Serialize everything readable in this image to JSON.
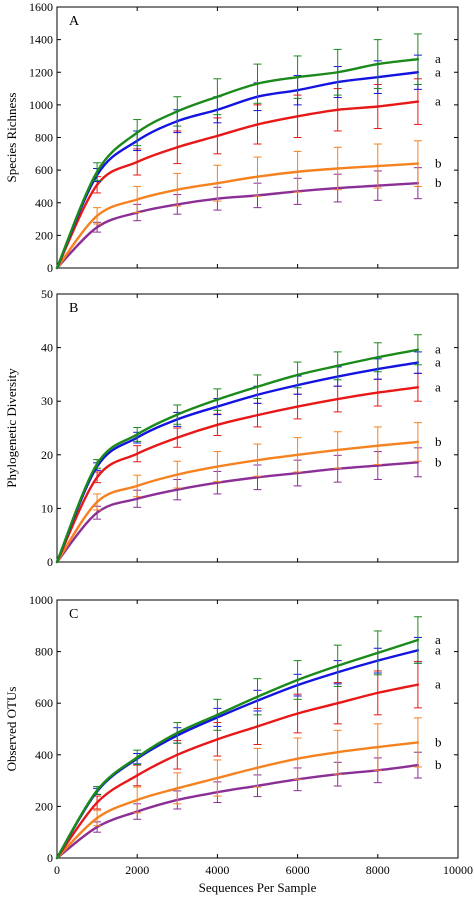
{
  "chart_data": {
    "type": "line",
    "xlabel": "Sequences Per Sample",
    "xlim": [
      0,
      10000
    ],
    "xticks": [
      0,
      2000,
      4000,
      6000,
      8000,
      10000
    ],
    "x": [
      0,
      1000,
      2000,
      3000,
      4000,
      5000,
      6000,
      7000,
      8000,
      9000
    ],
    "colors": {
      "green": "#1a8a1a",
      "blue": "#1414e0",
      "red": "#e81818",
      "orange": "#f58220",
      "purple": "#8b2f96"
    },
    "panels": [
      {
        "letter": "A",
        "ylabel": "Species Richness",
        "ylim": [
          0,
          1600
        ],
        "yticks": [
          0,
          200,
          400,
          600,
          800,
          1000,
          1200,
          1400,
          1600
        ],
        "series": [
          {
            "color": "green",
            "letter": "a",
            "values": [
              0,
              590,
              830,
              960,
              1050,
              1130,
              1170,
              1200,
              1250,
              1280
            ],
            "errors": [
              0,
              55,
              80,
              90,
              110,
              120,
              130,
              140,
              150,
              155
            ]
          },
          {
            "color": "blue",
            "letter": "a",
            "values": [
              0,
              570,
              780,
              900,
              970,
              1050,
              1090,
              1140,
              1170,
              1200
            ],
            "errors": [
              0,
              40,
              60,
              70,
              80,
              85,
              90,
              95,
              100,
              105
            ]
          },
          {
            "color": "red",
            "letter": "a",
            "values": [
              0,
              510,
              650,
              740,
              810,
              880,
              930,
              970,
              990,
              1020
            ],
            "errors": [
              0,
              50,
              80,
              100,
              110,
              120,
              130,
              130,
              135,
              140
            ]
          },
          {
            "color": "orange",
            "letter": "b",
            "values": [
              0,
              320,
              420,
              480,
              520,
              560,
              590,
              610,
              625,
              640
            ],
            "errors": [
              0,
              50,
              80,
              100,
              110,
              120,
              125,
              130,
              135,
              140
            ]
          },
          {
            "color": "purple",
            "letter": "b",
            "values": [
              0,
              250,
              340,
              390,
              425,
              445,
              470,
              490,
              505,
              520
            ],
            "errors": [
              0,
              30,
              50,
              60,
              70,
              75,
              80,
              85,
              90,
              95
            ]
          }
        ]
      },
      {
        "letter": "B",
        "ylabel": "Phylogenetic Diversity",
        "ylim": [
          0,
          50
        ],
        "yticks": [
          0,
          10,
          20,
          30,
          40,
          50
        ],
        "series": [
          {
            "color": "green",
            "letter": "a",
            "values": [
              0,
              18.3,
              23.8,
              27.5,
              30.3,
              32.7,
              34.9,
              36.6,
              38.2,
              39.6
            ],
            "errors": [
              0,
              0.8,
              1.3,
              1.8,
              2.0,
              2.2,
              2.4,
              2.6,
              2.7,
              2.8
            ]
          },
          {
            "color": "blue",
            "letter": "a",
            "values": [
              0,
              17.8,
              23.2,
              26.6,
              29.0,
              31.2,
              33.0,
              34.6,
              36.0,
              37.2
            ],
            "errors": [
              0,
              0.7,
              1.0,
              1.3,
              1.5,
              1.6,
              1.7,
              1.8,
              1.9,
              2.0
            ]
          },
          {
            "color": "red",
            "letter": "a",
            "values": [
              0,
              15.8,
              20.2,
              23.2,
              25.6,
              27.4,
              29.0,
              30.4,
              31.6,
              32.6
            ],
            "errors": [
              0,
              1.0,
              1.5,
              1.8,
              2.0,
              2.2,
              2.3,
              2.4,
              2.5,
              2.6
            ]
          },
          {
            "color": "orange",
            "letter": "b",
            "values": [
              0,
              11.2,
              14.2,
              16.3,
              17.8,
              19.0,
              20.0,
              20.9,
              21.7,
              22.4
            ],
            "errors": [
              0,
              1.5,
              2.0,
              2.5,
              2.8,
              3.0,
              3.2,
              3.4,
              3.5,
              3.6
            ]
          },
          {
            "color": "purple",
            "letter": "b",
            "values": [
              0,
              9.2,
              11.8,
              13.5,
              14.8,
              15.8,
              16.6,
              17.4,
              18.0,
              18.6
            ],
            "errors": [
              0,
              1.2,
              1.6,
              1.9,
              2.1,
              2.3,
              2.4,
              2.5,
              2.6,
              2.7
            ]
          }
        ]
      },
      {
        "letter": "C",
        "ylabel": "Observed OTUs",
        "ylim": [
          0,
          1000
        ],
        "yticks": [
          0,
          200,
          400,
          600,
          800,
          1000
        ],
        "series": [
          {
            "color": "green",
            "letter": "a",
            "values": [
              0,
              262,
              390,
              485,
              555,
              625,
              690,
              745,
              795,
              845
            ],
            "errors": [
              0,
              15,
              28,
              40,
              60,
              70,
              75,
              80,
              85,
              90
            ]
          },
          {
            "color": "blue",
            "letter": "a",
            "values": [
              0,
              258,
              385,
              475,
              545,
              610,
              670,
              720,
              765,
              805
            ],
            "errors": [
              0,
              12,
              20,
              30,
              35,
              40,
              42,
              45,
              48,
              50
            ]
          },
          {
            "color": "red",
            "letter": "a",
            "values": [
              0,
              215,
              320,
              400,
              460,
              510,
              560,
              600,
              640,
              672
            ],
            "errors": [
              0,
              25,
              40,
              55,
              65,
              70,
              75,
              80,
              85,
              90
            ]
          },
          {
            "color": "orange",
            "letter": "b",
            "values": [
              0,
              155,
              225,
              270,
              310,
              350,
              385,
              410,
              430,
              448
            ],
            "errors": [
              0,
              30,
              50,
              60,
              70,
              75,
              80,
              85,
              90,
              95
            ]
          },
          {
            "color": "purple",
            "letter": "b",
            "values": [
              0,
              120,
              180,
              225,
              255,
              280,
              305,
              325,
              340,
              360
            ],
            "errors": [
              0,
              20,
              30,
              35,
              40,
              42,
              44,
              46,
              48,
              50
            ]
          }
        ]
      }
    ]
  }
}
